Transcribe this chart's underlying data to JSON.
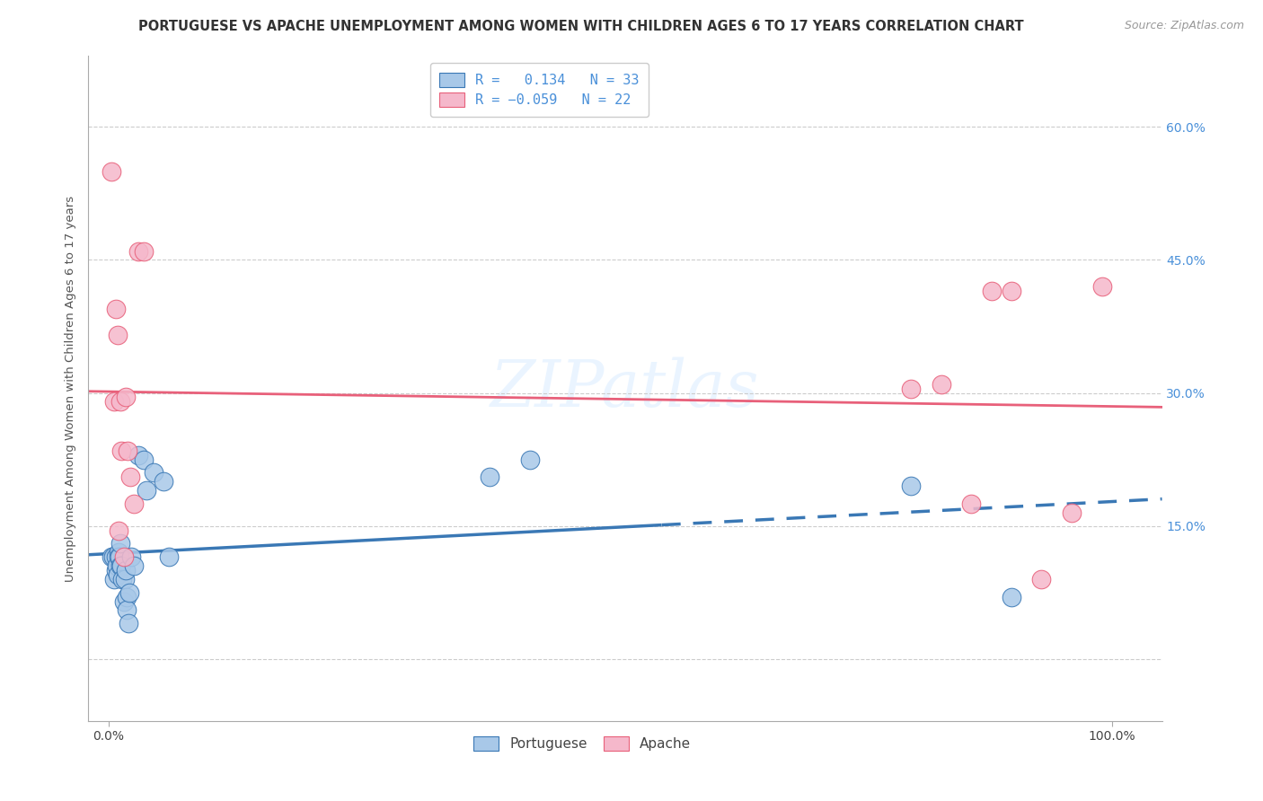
{
  "title": "PORTUGUESE VS APACHE UNEMPLOYMENT AMONG WOMEN WITH CHILDREN AGES 6 TO 17 YEARS CORRELATION CHART",
  "source": "Source: ZipAtlas.com",
  "ylabel": "Unemployment Among Women with Children Ages 6 to 17 years",
  "ytick_labels": [
    "",
    "15.0%",
    "30.0%",
    "45.0%",
    "60.0%"
  ],
  "ytick_values": [
    0.0,
    0.15,
    0.3,
    0.45,
    0.6
  ],
  "xlim": [
    -0.02,
    1.05
  ],
  "ylim": [
    -0.07,
    0.68
  ],
  "portuguese_R": 0.134,
  "portuguese_N": 33,
  "apache_R": -0.059,
  "apache_N": 22,
  "portuguese_color": "#a8c8e8",
  "apache_color": "#f5b8cb",
  "portuguese_line_color": "#3a78b5",
  "apache_line_color": "#e8607a",
  "background_color": "#ffffff",
  "grid_color": "#cccccc",
  "portuguese_x": [
    0.003,
    0.005,
    0.006,
    0.007,
    0.007,
    0.008,
    0.009,
    0.01,
    0.01,
    0.011,
    0.012,
    0.012,
    0.013,
    0.014,
    0.015,
    0.016,
    0.017,
    0.018,
    0.018,
    0.02,
    0.021,
    0.023,
    0.025,
    0.03,
    0.035,
    0.038,
    0.045,
    0.055,
    0.06,
    0.38,
    0.42,
    0.8,
    0.9
  ],
  "portuguese_y": [
    0.115,
    0.115,
    0.09,
    0.1,
    0.115,
    0.105,
    0.095,
    0.12,
    0.115,
    0.115,
    0.105,
    0.13,
    0.105,
    0.09,
    0.065,
    0.09,
    0.1,
    0.07,
    0.055,
    0.04,
    0.075,
    0.115,
    0.105,
    0.23,
    0.225,
    0.19,
    0.21,
    0.2,
    0.115,
    0.205,
    0.225,
    0.195,
    0.07
  ],
  "apache_x": [
    0.003,
    0.006,
    0.007,
    0.009,
    0.01,
    0.012,
    0.013,
    0.015,
    0.017,
    0.019,
    0.022,
    0.025,
    0.03,
    0.035,
    0.8,
    0.83,
    0.86,
    0.88,
    0.9,
    0.93,
    0.96,
    0.99
  ],
  "apache_y": [
    0.55,
    0.29,
    0.395,
    0.365,
    0.145,
    0.29,
    0.235,
    0.115,
    0.295,
    0.235,
    0.205,
    0.175,
    0.46,
    0.46,
    0.305,
    0.31,
    0.175,
    0.415,
    0.415,
    0.09,
    0.165,
    0.42
  ],
  "legend_label_portuguese": "Portuguese",
  "legend_label_apache": "Apache",
  "title_fontsize": 10.5,
  "source_fontsize": 9,
  "axis_label_fontsize": 9.5,
  "tick_fontsize": 10,
  "legend_fontsize": 11,
  "right_tick_color": "#4a90d9",
  "line_split_x": 0.55
}
